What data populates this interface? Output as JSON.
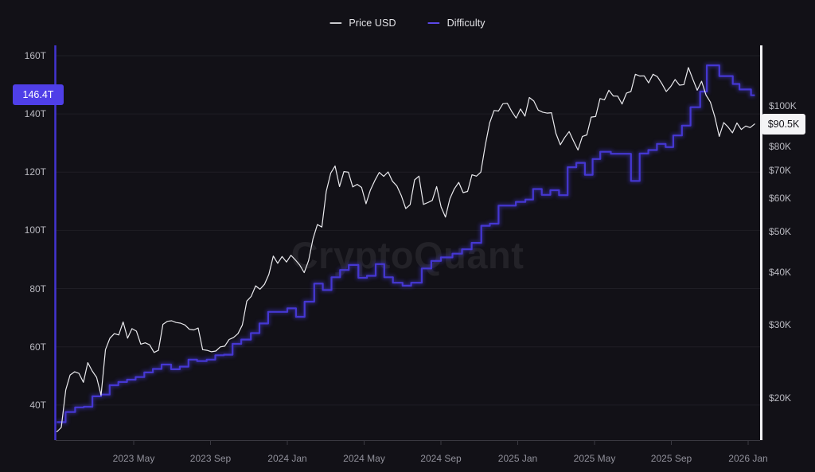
{
  "watermark": "CryptoQuant",
  "legend": {
    "items": [
      {
        "label": "Price USD",
        "color": "#c9c9ce"
      },
      {
        "label": "Difficulty",
        "color": "#5b48e8"
      }
    ]
  },
  "badges": {
    "difficulty_current": "146.4T",
    "price_current": "$90.5K"
  },
  "colors": {
    "background": "#121117",
    "price_line": "#eaeaee",
    "difficulty_line": "#4537d2",
    "difficulty_badge_bg": "#4f3fe8",
    "price_badge_bg": "#f4f4f6",
    "grid": "#1f1e25",
    "x_baseline": "#3a3941",
    "left_axis_line": "#4334d0",
    "right_axis_line": "#f2f2f4",
    "y_label": "#b9b9c0",
    "x_label": "#90909a"
  },
  "chart_data": {
    "type": "line",
    "title": "",
    "legend_position": "top-center",
    "grid": "horizontal",
    "x_unit": "months since 2023-01-01",
    "x_range": [
      0,
      36.65
    ],
    "x_ticks": [
      {
        "m": 4,
        "label": "2023 May"
      },
      {
        "m": 8,
        "label": "2023 Sep"
      },
      {
        "m": 12,
        "label": "2024 Jan"
      },
      {
        "m": 16,
        "label": "2024 May"
      },
      {
        "m": 20,
        "label": "2024 Sep"
      },
      {
        "m": 24,
        "label": "2025 Jan"
      },
      {
        "m": 28,
        "label": "2025 May"
      },
      {
        "m": 32,
        "label": "2025 Sep"
      },
      {
        "m": 36,
        "label": "2026 Jan"
      }
    ],
    "left_axis": {
      "series": "Difficulty",
      "unit": "T (trillions)",
      "scale": "linear",
      "range": [
        27.9,
        163.6
      ],
      "ticks": [
        {
          "v": 160,
          "label": "160T"
        },
        {
          "v": 140,
          "label": "140T"
        },
        {
          "v": 120,
          "label": "120T"
        },
        {
          "v": 100,
          "label": "100T"
        },
        {
          "v": 80,
          "label": "80T"
        },
        {
          "v": 60,
          "label": "60T"
        },
        {
          "v": 40,
          "label": "40T"
        }
      ],
      "current_value": 146.4,
      "current_label": "146.4T"
    },
    "right_axis": {
      "series": "Price USD",
      "unit": "USD (thousands)",
      "scale": "log",
      "range": [
        15.9,
        139.6
      ],
      "ticks": [
        {
          "v": 100,
          "label": "$100K"
        },
        {
          "v": 80,
          "label": "$80K"
        },
        {
          "v": 70,
          "label": "$70K"
        },
        {
          "v": 60,
          "label": "$60K"
        },
        {
          "v": 50,
          "label": "$50K"
        },
        {
          "v": 40,
          "label": "$40K"
        },
        {
          "v": 30,
          "label": "$30K"
        },
        {
          "v": 20,
          "label": "$20K"
        }
      ],
      "current_value": 90.5,
      "current_label": "$90.5K"
    },
    "series": [
      {
        "name": "Price USD",
        "axis": "right",
        "style": "line",
        "color": "#eaeaee",
        "x_start_month": 0,
        "x_step_months": 0.22997,
        "values_usd_k": [
          16.6,
          17.0,
          20.9,
          22.7,
          23.1,
          22.9,
          21.8,
          24.3,
          23.2,
          22.4,
          20.3,
          26.1,
          27.8,
          28.5,
          28.3,
          30.4,
          27.8,
          29.3,
          28.9,
          26.9,
          27.1,
          26.8,
          25.7,
          26.0,
          30.0,
          30.5,
          30.6,
          30.3,
          30.2,
          29.9,
          29.2,
          29.1,
          29.4,
          26.1,
          26.0,
          25.8,
          25.9,
          26.5,
          26.6,
          27.6,
          27.9,
          28.5,
          29.9,
          34.1,
          35.0,
          37.1,
          36.4,
          37.4,
          39.5,
          43.7,
          42.0,
          43.6,
          42.3,
          43.9,
          42.8,
          41.6,
          39.9,
          42.6,
          48.1,
          52.0,
          51.3,
          62.4,
          69.0,
          71.8,
          64.1,
          69.6,
          69.4,
          64.0,
          64.9,
          63.8,
          58.3,
          62.9,
          66.3,
          69.3,
          67.8,
          69.5,
          66.0,
          64.3,
          61.0,
          56.8,
          58.0,
          66.5,
          67.9,
          58.1,
          58.7,
          59.4,
          64.1,
          57.3,
          54.2,
          60.0,
          63.3,
          65.6,
          62.0,
          62.4,
          68.4,
          67.9,
          69.4,
          80.4,
          91.0,
          97.5,
          97.2,
          101.2,
          101.4,
          97.0,
          93.5,
          98.3,
          94.5,
          104.7,
          102.7,
          97.7,
          96.6,
          96.1,
          96.3,
          86.0,
          80.7,
          84.0,
          86.8,
          82.4,
          78.4,
          84.5,
          85.2,
          94.0,
          94.3,
          104.1,
          103.4,
          109.0,
          105.6,
          105.5,
          101.0,
          107.3,
          108.2,
          119.0,
          117.9,
          118.0,
          113.5,
          119.0,
          117.4,
          113.0,
          108.2,
          111.2,
          115.6,
          112.1,
          112.4,
          123.5,
          116.0,
          109.0,
          114.5,
          106.1,
          102.1,
          94.0,
          84.5,
          91.2,
          89.0,
          86.2,
          91.0,
          87.8,
          89.5,
          88.7,
          90.5
        ]
      },
      {
        "name": "Difficulty",
        "axis": "left",
        "style": "step-after",
        "color": "#4537d2",
        "points_month_T": [
          [
            0,
            34.1
          ],
          [
            0.45,
            37.6
          ],
          [
            0.95,
            39.2
          ],
          [
            1.4,
            39.4
          ],
          [
            1.85,
            43.0
          ],
          [
            2.3,
            43.6
          ],
          [
            2.75,
            46.8
          ],
          [
            3.2,
            47.9
          ],
          [
            3.65,
            48.7
          ],
          [
            4.1,
            49.6
          ],
          [
            4.55,
            51.2
          ],
          [
            5.0,
            52.4
          ],
          [
            5.45,
            53.9
          ],
          [
            5.95,
            52.3
          ],
          [
            6.4,
            53.2
          ],
          [
            6.85,
            55.6
          ],
          [
            7.3,
            55.1
          ],
          [
            7.8,
            55.6
          ],
          [
            8.25,
            57.1
          ],
          [
            8.7,
            57.3
          ],
          [
            9.15,
            61.0
          ],
          [
            9.6,
            62.5
          ],
          [
            10.1,
            64.7
          ],
          [
            10.55,
            68.0
          ],
          [
            11.0,
            72.0
          ],
          [
            12.0,
            73.2
          ],
          [
            12.45,
            70.3
          ],
          [
            12.9,
            75.5
          ],
          [
            13.4,
            81.7
          ],
          [
            13.85,
            79.5
          ],
          [
            14.3,
            83.9
          ],
          [
            14.75,
            86.4
          ],
          [
            15.2,
            88.1
          ],
          [
            15.7,
            83.7
          ],
          [
            16.15,
            84.4
          ],
          [
            16.6,
            88.4
          ],
          [
            17.05,
            83.9
          ],
          [
            17.5,
            82.0
          ],
          [
            18.0,
            81.0
          ],
          [
            18.45,
            82.0
          ],
          [
            19.0,
            86.9
          ],
          [
            19.5,
            89.5
          ],
          [
            20.0,
            90.7
          ],
          [
            20.6,
            92.0
          ],
          [
            21.1,
            93.5
          ],
          [
            21.6,
            95.7
          ],
          [
            22.1,
            101.6
          ],
          [
            22.55,
            102.3
          ],
          [
            23.0,
            108.5
          ],
          [
            23.9,
            109.8
          ],
          [
            24.4,
            110.6
          ],
          [
            24.8,
            114.2
          ],
          [
            25.25,
            112.2
          ],
          [
            25.7,
            113.8
          ],
          [
            26.15,
            112.1
          ],
          [
            26.6,
            121.7
          ],
          [
            27.05,
            123.2
          ],
          [
            27.5,
            119.1
          ],
          [
            27.9,
            124.5
          ],
          [
            28.3,
            127.0
          ],
          [
            28.85,
            126.3
          ],
          [
            29.9,
            117.0
          ],
          [
            30.35,
            126.4
          ],
          [
            30.8,
            127.6
          ],
          [
            31.25,
            129.7
          ],
          [
            31.7,
            128.6
          ],
          [
            32.1,
            132.6
          ],
          [
            32.55,
            136.0
          ],
          [
            33.0,
            142.3
          ],
          [
            33.5,
            147.7
          ],
          [
            33.85,
            156.7
          ],
          [
            34.5,
            153.0
          ],
          [
            35.2,
            150.3
          ],
          [
            35.55,
            148.4
          ],
          [
            36.15,
            146.4
          ]
        ],
        "x_end_month": 36.35
      }
    ]
  }
}
